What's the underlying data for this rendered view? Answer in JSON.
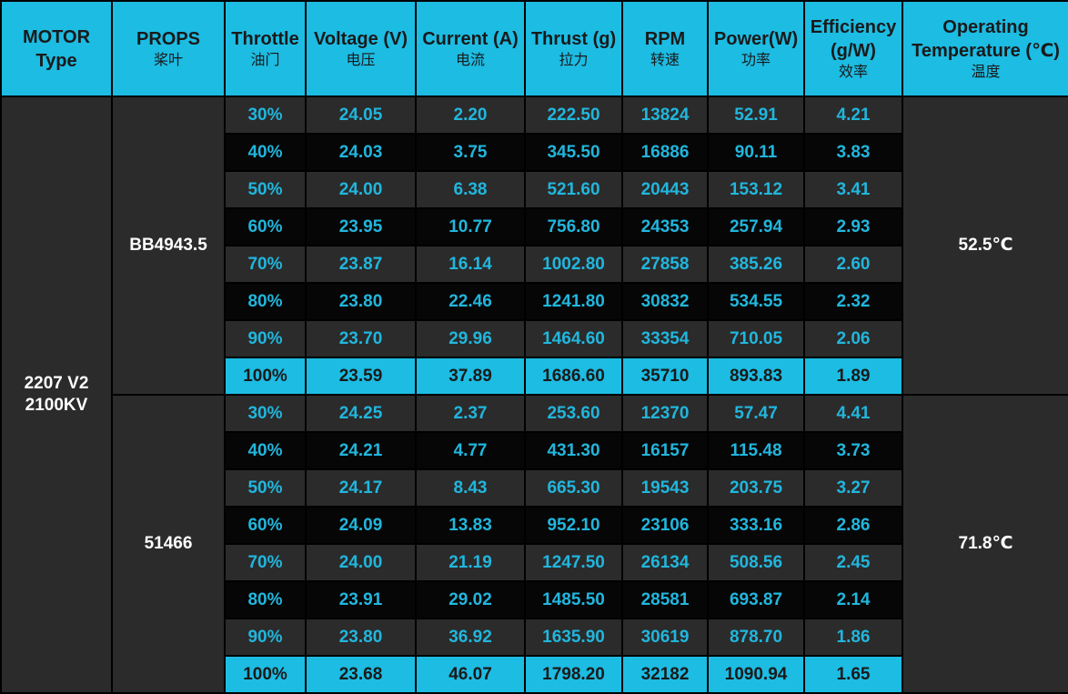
{
  "chart_data": {
    "type": "table",
    "columns": [
      {
        "en": "MOTOR\nType",
        "cn": ""
      },
      {
        "en": "PROPS",
        "cn": "桨叶"
      },
      {
        "en": "Throttle",
        "cn": "油门"
      },
      {
        "en": "Voltage (V)",
        "cn": "电压"
      },
      {
        "en": "Current (A)",
        "cn": "电流"
      },
      {
        "en": "Thrust (g)",
        "cn": "拉力"
      },
      {
        "en": "RPM",
        "cn": "转速"
      },
      {
        "en": "Power(W)",
        "cn": "功率"
      },
      {
        "en": "Efficiency\n(g/W)",
        "cn": "效率"
      },
      {
        "en": "Operating\nTemperature (℃)",
        "cn": "温度"
      }
    ],
    "motor": "2207 V2\n2100KV",
    "groups": [
      {
        "prop": "BB4943.5",
        "temperature": "52.5℃",
        "rows": [
          [
            "30%",
            "24.05",
            "2.20",
            "222.50",
            "13824",
            "52.91",
            "4.21"
          ],
          [
            "40%",
            "24.03",
            "3.75",
            "345.50",
            "16886",
            "90.11",
            "3.83"
          ],
          [
            "50%",
            "24.00",
            "6.38",
            "521.60",
            "20443",
            "153.12",
            "3.41"
          ],
          [
            "60%",
            "23.95",
            "10.77",
            "756.80",
            "24353",
            "257.94",
            "2.93"
          ],
          [
            "70%",
            "23.87",
            "16.14",
            "1002.80",
            "27858",
            "385.26",
            "2.60"
          ],
          [
            "80%",
            "23.80",
            "22.46",
            "1241.80",
            "30832",
            "534.55",
            "2.32"
          ],
          [
            "90%",
            "23.70",
            "29.96",
            "1464.60",
            "33354",
            "710.05",
            "2.06"
          ],
          [
            "100%",
            "23.59",
            "37.89",
            "1686.60",
            "35710",
            "893.83",
            "1.89"
          ]
        ]
      },
      {
        "prop": "51466",
        "temperature": "71.8℃",
        "rows": [
          [
            "30%",
            "24.25",
            "2.37",
            "253.60",
            "12370",
            "57.47",
            "4.41"
          ],
          [
            "40%",
            "24.21",
            "4.77",
            "431.30",
            "16157",
            "115.48",
            "3.73"
          ],
          [
            "50%",
            "24.17",
            "8.43",
            "665.30",
            "19543",
            "203.75",
            "3.27"
          ],
          [
            "60%",
            "24.09",
            "13.83",
            "952.10",
            "23106",
            "333.16",
            "2.86"
          ],
          [
            "70%",
            "24.00",
            "21.19",
            "1247.50",
            "26134",
            "508.56",
            "2.45"
          ],
          [
            "80%",
            "23.91",
            "29.02",
            "1485.50",
            "28581",
            "693.87",
            "2.14"
          ],
          [
            "90%",
            "23.80",
            "36.92",
            "1635.90",
            "30619",
            "878.70",
            "1.86"
          ],
          [
            "100%",
            "23.68",
            "46.07",
            "1798.20",
            "32182",
            "1090.94",
            "1.65"
          ]
        ]
      }
    ]
  },
  "colors": {
    "header_bg": "#1cbce3",
    "header_text": "#1a1a1a",
    "row_light_bg": "#2b2b2b",
    "row_dark_bg": "#060606",
    "value_text": "#21b6dd",
    "label_text": "#ffffff",
    "border": "#000000"
  }
}
